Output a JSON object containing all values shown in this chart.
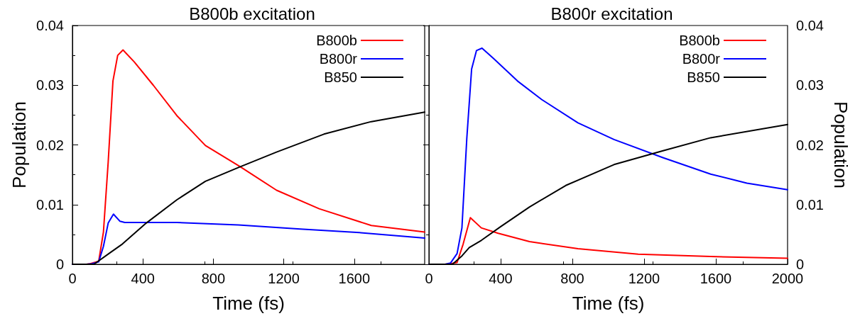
{
  "chart_data": [
    {
      "type": "line",
      "title": "B800b excitation",
      "xlabel": "Time (fs)",
      "ylabel": "Population",
      "xlim": [
        0,
        2000
      ],
      "ylim": [
        0,
        0.04
      ],
      "xticks": [
        0,
        400,
        800,
        1200,
        1600
      ],
      "yticks": [
        0,
        0.01,
        0.02,
        0.03,
        0.04
      ],
      "grid": false,
      "legend": "top right",
      "marker": "none",
      "line_style": "solid",
      "series": [
        {
          "name": "B800b",
          "color": "#ff0000",
          "x": [
            0,
            80,
            100,
            149,
            176,
            203,
            230,
            257,
            287,
            351,
            459,
            593,
            755,
            950,
            1159,
            1401,
            1697,
            2000
          ],
          "values": [
            0,
            0,
            0.0001,
            0.0005,
            0.0054,
            0.0171,
            0.0307,
            0.035,
            0.0359,
            0.0339,
            0.03,
            0.0249,
            0.0199,
            0.0164,
            0.0124,
            0.0093,
            0.0065,
            0.0054
          ]
        },
        {
          "name": "B800r",
          "color": "#0000ff",
          "x": [
            0,
            80,
            110,
            149,
            176,
            203,
            233,
            270,
            297,
            593,
            943,
            1293,
            1630,
            2000
          ],
          "values": [
            0,
            0,
            0.0001,
            0.0004,
            0.003,
            0.0069,
            0.0084,
            0.0072,
            0.007,
            0.007,
            0.0066,
            0.0059,
            0.0053,
            0.0044
          ]
        },
        {
          "name": "B850",
          "color": "#000000",
          "x": [
            0,
            100,
            122,
            217,
            284,
            419,
            593,
            755,
            950,
            1159,
            1428,
            1697,
            2000
          ],
          "values": [
            0,
            0,
            0,
            0.002,
            0.0034,
            0.0069,
            0.0108,
            0.0139,
            0.0163,
            0.0188,
            0.0218,
            0.0239,
            0.0255
          ]
        }
      ]
    },
    {
      "type": "line",
      "title": "B800r excitation",
      "xlabel": "Time (fs)",
      "ylabel": "Population",
      "xlim": [
        0,
        2000
      ],
      "ylim": [
        0,
        0.04
      ],
      "xticks": [
        0,
        400,
        800,
        1200,
        1600,
        2000
      ],
      "yticks": [
        0,
        0.01,
        0.02,
        0.03,
        0.04
      ],
      "grid": false,
      "legend": "top right",
      "marker": "none",
      "line_style": "solid",
      "series": [
        {
          "name": "B800b",
          "color": "#ff0000",
          "x": [
            0,
            90,
            120,
            157,
            191,
            231,
            292,
            386,
            561,
            831,
            1167,
            1571,
            2000
          ],
          "values": [
            0,
            0,
            0.0001,
            0.0003,
            0.0034,
            0.0078,
            0.0061,
            0.0052,
            0.0038,
            0.0026,
            0.0017,
            0.0013,
            0.001
          ]
        },
        {
          "name": "B800r",
          "color": "#0000ff",
          "x": [
            0,
            90,
            120,
            157,
            184,
            211,
            238,
            265,
            296,
            359,
            494,
            629,
            831,
            1032,
            1302,
            1571,
            1773,
            2000
          ],
          "values": [
            0,
            0,
            0.0002,
            0.0018,
            0.0061,
            0.021,
            0.0327,
            0.0358,
            0.0362,
            0.0345,
            0.0307,
            0.0276,
            0.0237,
            0.0209,
            0.0179,
            0.0151,
            0.0136,
            0.0125
          ]
        },
        {
          "name": "B850",
          "color": "#000000",
          "x": [
            0,
            100,
            131,
            184,
            225,
            292,
            400,
            561,
            763,
            1032,
            1302,
            1571,
            2000
          ],
          "values": [
            0,
            0,
            0,
            0.0014,
            0.0028,
            0.004,
            0.0063,
            0.0096,
            0.0132,
            0.0167,
            0.019,
            0.0212,
            0.0234
          ]
        }
      ]
    }
  ]
}
